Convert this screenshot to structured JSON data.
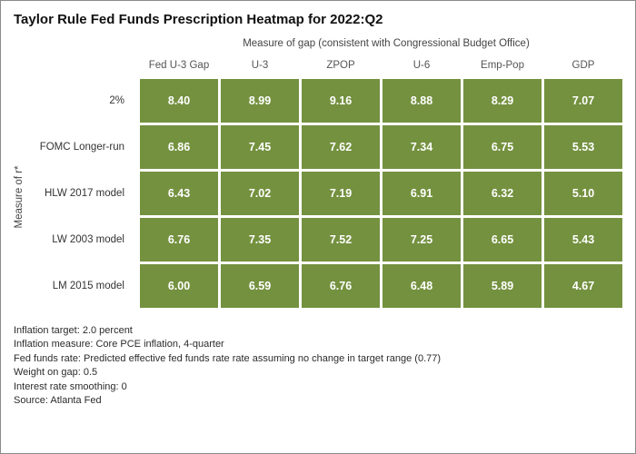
{
  "title": "Taylor Rule Fed Funds Prescription Heatmap for 2022:Q2",
  "chart_data": {
    "type": "heatmap",
    "title": "Taylor Rule Fed Funds Prescription Heatmap for 2022:Q2",
    "x_axis_title": "Measure of gap (consistent with Congressional Budget Office)",
    "y_axis_title": "Measure of r*",
    "columns": [
      "Fed U-3 Gap",
      "U-3",
      "ZPOP",
      "U-6",
      "Emp-Pop",
      "GDP"
    ],
    "rows": [
      "2%",
      "FOMC Longer-run",
      "HLW 2017 model",
      "LW 2003 model",
      "LM 2015 model"
    ],
    "values": [
      [
        8.4,
        8.99,
        9.16,
        8.88,
        8.29,
        7.07
      ],
      [
        6.86,
        7.45,
        7.62,
        7.34,
        6.75,
        5.53
      ],
      [
        6.43,
        7.02,
        7.19,
        6.91,
        6.32,
        5.1
      ],
      [
        6.76,
        7.35,
        7.52,
        7.25,
        6.65,
        5.43
      ],
      [
        6.0,
        6.59,
        6.76,
        6.48,
        5.89,
        4.67
      ]
    ],
    "cell_color": "#74913f",
    "value_text_color": "#ffffff",
    "legend": "none",
    "grid": "off"
  },
  "footnotes": [
    "Inflation target: 2.0 percent",
    "Inflation measure: Core PCE inflation, 4-quarter",
    "Fed funds rate: Predicted effective fed funds rate rate assuming no change in target range (0.77)",
    "Weight on gap: 0.5",
    "Interest rate smoothing: 0",
    "Source: Atlanta Fed"
  ]
}
